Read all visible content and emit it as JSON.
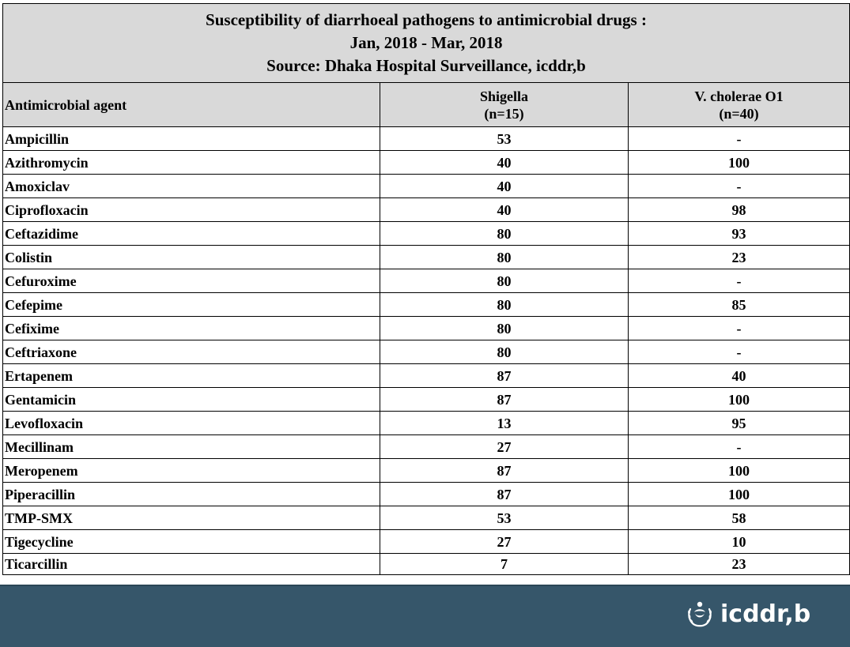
{
  "title": {
    "line1": "Susceptibility of diarrhoeal pathogens to antimicrobial drugs :",
    "line2": "Jan, 2018 - Mar, 2018",
    "line3": "Source: Dhaka Hospital Surveillance, icddr,b"
  },
  "headers": {
    "agent": "Antimicrobial agent",
    "shigella_name": "Shigella",
    "shigella_n": "(n=15)",
    "cholerae_name": "V. cholerae O1",
    "cholerae_n": "(n=40)"
  },
  "rows": [
    {
      "agent": "Ampicillin",
      "shigella": "53",
      "cholerae": "-"
    },
    {
      "agent": "Azithromycin",
      "shigella": "40",
      "cholerae": "100"
    },
    {
      "agent": "Amoxiclav",
      "shigella": "40",
      "cholerae": "-"
    },
    {
      "agent": "Ciprofloxacin",
      "shigella": "40",
      "cholerae": "98"
    },
    {
      "agent": "Ceftazidime",
      "shigella": "80",
      "cholerae": "93"
    },
    {
      "agent": "Colistin",
      "shigella": "80",
      "cholerae": "23"
    },
    {
      "agent": "Cefuroxime",
      "shigella": "80",
      "cholerae": "-"
    },
    {
      "agent": "Cefepime",
      "shigella": "80",
      "cholerae": "85"
    },
    {
      "agent": "Cefixime",
      "shigella": "80",
      "cholerae": "-"
    },
    {
      "agent": "Ceftriaxone",
      "shigella": "80",
      "cholerae": "-"
    },
    {
      "agent": "Ertapenem",
      "shigella": "87",
      "cholerae": "40"
    },
    {
      "agent": "Gentamicin",
      "shigella": "87",
      "cholerae": "100"
    },
    {
      "agent": "Levofloxacin",
      "shigella": "13",
      "cholerae": "95"
    },
    {
      "agent": "Mecillinam",
      "shigella": "27",
      "cholerae": "-"
    },
    {
      "agent": "Meropenem",
      "shigella": "87",
      "cholerae": "100"
    },
    {
      "agent": "Piperacillin",
      "shigella": "87",
      "cholerae": "100"
    },
    {
      "agent": "TMP-SMX",
      "shigella": "53",
      "cholerae": "58"
    },
    {
      "agent": "Tigecycline",
      "shigella": "27",
      "cholerae": "10"
    },
    {
      "agent": "Ticarcillin",
      "shigella": "7",
      "cholerae": "23"
    }
  ],
  "footer": {
    "logo_text": "icddr,b",
    "logo_icon": "icddrb-emblem-icon",
    "background_color": "#36566a"
  }
}
